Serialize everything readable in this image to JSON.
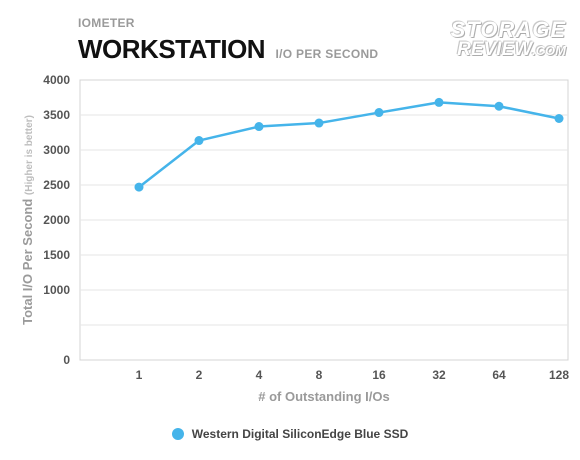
{
  "header": {
    "supertitle": "IOMETER",
    "title": "WORKSTATION",
    "subtitle": "I/O PER SECOND"
  },
  "logo": {
    "line1": "STORAGE",
    "line2": "REVIEW",
    "line2_suffix": ".COM"
  },
  "chart_data": {
    "type": "line",
    "title": "WORKSTATION",
    "subtitle": "I/O PER SECOND",
    "categories": [
      "1",
      "2",
      "4",
      "8",
      "16",
      "32",
      "64",
      "128"
    ],
    "series": [
      {
        "name": "Western Digital SiliconEdge Blue SSD",
        "values": [
          2470,
          3135,
          3335,
          3385,
          3535,
          3680,
          3625,
          3450
        ]
      }
    ],
    "xlabel": "# of Outstanding I/Os",
    "ylabel": "Total I/O Per Second",
    "ylabel_note": "(Higher is better)",
    "ylim": [
      0,
      4000
    ],
    "yticks": [
      0,
      1000,
      1500,
      2000,
      2500,
      3000,
      3500,
      4000
    ],
    "grid": true,
    "legend_position": "bottom",
    "series_color": "#45b4ea"
  }
}
